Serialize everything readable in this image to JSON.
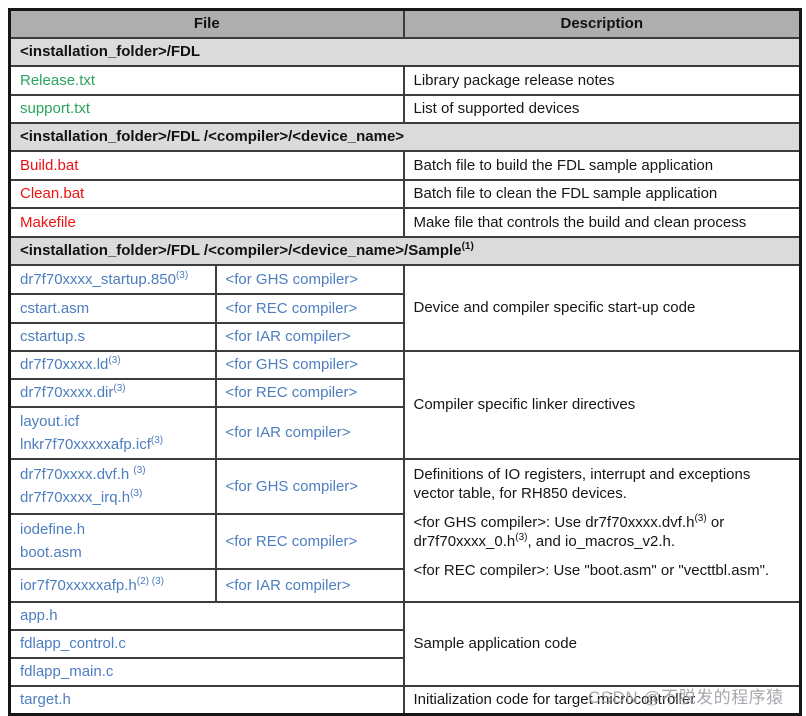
{
  "watermark": {
    "text": "CSDN @不脱发的程序猿"
  },
  "colors": {
    "file_green": "#2aa45e",
    "file_red": "#ee1111",
    "file_blue": "#4d7ebf",
    "header_bg": "#aeaeae",
    "section_bg": "#dbdbdb",
    "border": "#3d3d3d"
  },
  "table": {
    "headers": {
      "file": "File",
      "description": "Description"
    },
    "sections": {
      "fdl": "<installation_folder>/FDL",
      "compiler": "<installation_folder>/FDL /<compiler>/<device_name>",
      "sample": "<installation_folder>/FDL /<compiler>/<device_name>/Sample",
      "sample_sup": "(1)"
    },
    "rows": {
      "release": {
        "file": "Release.txt",
        "desc": "Library package release notes"
      },
      "support": {
        "file": "support.txt",
        "desc": "List of supported devices"
      },
      "build": {
        "file": "Build.bat",
        "desc": "Batch file to build the FDL sample application"
      },
      "clean": {
        "file": "Clean.bat",
        "desc": "Batch file to clean the FDL sample application"
      },
      "makefile": {
        "file": "Makefile",
        "desc": "Make file that controls the build and clean process"
      },
      "startup_ghs": {
        "file": "dr7f70xxxx_startup.850",
        "file_sup": "(3)",
        "compiler": "<for GHS compiler>",
        "desc": "Device and compiler specific start-up code"
      },
      "startup_rec": {
        "file": "cstart.asm",
        "compiler": "<for REC compiler>"
      },
      "startup_iar": {
        "file": "cstartup.s",
        "compiler": "<for IAR compiler>"
      },
      "linker_ghs": {
        "file": "dr7f70xxxx.ld",
        "file_sup": "(3)",
        "compiler": "<for GHS compiler>",
        "desc": "Compiler specific linker directives"
      },
      "linker_rec": {
        "file": "dr7f70xxxx.dir",
        "file_sup": "(3)",
        "compiler": "<for REC compiler>"
      },
      "linker_iar": {
        "line1": "layout.icf",
        "line2": "lnkr7f70xxxxxafp.icf",
        "line2_sup": "(3)",
        "compiler": "<for IAR compiler>"
      },
      "io_ghs": {
        "line1": "dr7f70xxxx.dvf.h ",
        "line1_sup": "(3)",
        "line2": "dr7f70xxxx_irq.h",
        "line2_sup": "(3)",
        "compiler": "<for GHS compiler>",
        "desc_p1": "Definitions of IO registers, interrupt and exceptions vector table, for RH850 devices.",
        "desc_p2a": "<for GHS compiler>: Use dr7f70xxxx.dvf.h",
        "desc_p2_sup1": "(3)",
        "desc_p2b": " or dr7f70xxxx_0.h",
        "desc_p2_sup2": "(3)",
        "desc_p2c": ", and io_macros_v2.h.",
        "desc_p3": "<for REC compiler>: Use \"boot.asm\" or \"vecttbl.asm\"."
      },
      "io_rec": {
        "line1": "iodefine.h",
        "line2": "boot.asm",
        "compiler": "<for REC compiler>"
      },
      "io_iar": {
        "file": "ior7f70xxxxxafp.h",
        "file_sup": "(2) (3)",
        "compiler": "<for IAR compiler>"
      },
      "app_h": {
        "file": "app.h",
        "desc": "Sample application code"
      },
      "fdlapp_control": {
        "file": "fdlapp_control.c"
      },
      "fdlapp_main": {
        "file": "fdlapp_main.c"
      },
      "target": {
        "file": "target.h",
        "desc": "Initialization code for target microcontroller"
      }
    }
  }
}
